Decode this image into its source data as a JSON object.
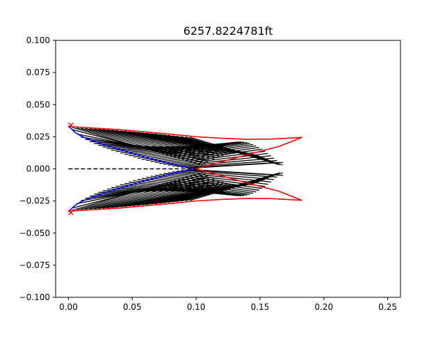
{
  "chart_data": {
    "type": "line",
    "title": "6257.8224781ft",
    "xlabel": "",
    "ylabel": "",
    "xlim": [
      -0.01,
      0.26
    ],
    "ylim": [
      -0.1,
      0.1
    ],
    "x_ticks": [
      0.0,
      0.05,
      0.1,
      0.15,
      0.2,
      0.25
    ],
    "x_tick_labels": [
      "0.00",
      "0.05",
      "0.10",
      "0.15",
      "0.20",
      "0.25"
    ],
    "y_ticks": [
      -0.1,
      -0.075,
      -0.05,
      -0.025,
      0.0,
      0.025,
      0.05,
      0.075,
      0.1
    ],
    "y_tick_labels": [
      "−0.100",
      "−0.075",
      "−0.050",
      "−0.025",
      "0.000",
      "0.025",
      "0.050",
      "0.075",
      "0.100"
    ],
    "grid": false,
    "legend": "none",
    "colors": {
      "wall": "#0000ff",
      "boundary": "#ff0000",
      "characteristics": "#000000",
      "axis": "#000000",
      "marker": "#ff0000"
    },
    "series": [
      {
        "role": "wall-contour-upper",
        "color": "#0000ff",
        "style": "solid",
        "x": [
          0.0,
          0.005,
          0.01,
          0.02,
          0.03,
          0.04,
          0.05,
          0.06,
          0.07,
          0.08,
          0.09,
          0.1
        ],
        "y": [
          0.0335,
          0.0285,
          0.0255,
          0.0215,
          0.0182,
          0.0152,
          0.0122,
          0.0092,
          0.0065,
          0.004,
          0.0017,
          0.0
        ]
      },
      {
        "role": "wall-contour-lower",
        "color": "#0000ff",
        "style": "solid",
        "x": [
          0.0,
          0.005,
          0.01,
          0.02,
          0.03,
          0.04,
          0.05,
          0.06,
          0.07,
          0.08,
          0.09,
          0.1
        ],
        "y": [
          -0.0335,
          -0.0285,
          -0.0255,
          -0.0215,
          -0.0182,
          -0.0152,
          -0.0122,
          -0.0092,
          -0.0065,
          -0.004,
          -0.0017,
          0.0
        ]
      },
      {
        "role": "boundary-upper",
        "color": "#ff0000",
        "style": "solid",
        "x": [
          0.0,
          0.04,
          0.08,
          0.1,
          0.12,
          0.14,
          0.16,
          0.183,
          0.165,
          0.14,
          0.12,
          0.1
        ],
        "y": [
          0.033,
          0.0305,
          0.027,
          0.025,
          0.0238,
          0.023,
          0.0232,
          0.0245,
          0.0175,
          0.011,
          0.0055,
          0.0
        ]
      },
      {
        "role": "boundary-lower",
        "color": "#ff0000",
        "style": "solid",
        "x": [
          0.0,
          0.04,
          0.08,
          0.1,
          0.12,
          0.14,
          0.16,
          0.183,
          0.165,
          0.14,
          0.12,
          0.1
        ],
        "y": [
          -0.033,
          -0.0305,
          -0.027,
          -0.025,
          -0.0238,
          -0.023,
          -0.0232,
          -0.0245,
          -0.0175,
          -0.011,
          -0.0055,
          0.0
        ]
      },
      {
        "role": "centerline",
        "color": "#000000",
        "style": "dashed",
        "x": [
          0.0,
          0.1
        ],
        "y": [
          0.0,
          0.0
        ]
      }
    ],
    "characteristic_lines": {
      "color": "#000000",
      "count": 28,
      "upper_start": {
        "x_range": [
          0.003,
          0.095
        ]
      },
      "upper_end": {
        "x_range": [
          0.105,
          0.168
        ]
      }
    },
    "markers": [
      {
        "x": 0.002,
        "y": 0.034,
        "symbol": "x",
        "color": "#ff0000"
      },
      {
        "x": 0.002,
        "y": -0.034,
        "symbol": "x",
        "color": "#ff0000"
      }
    ]
  }
}
